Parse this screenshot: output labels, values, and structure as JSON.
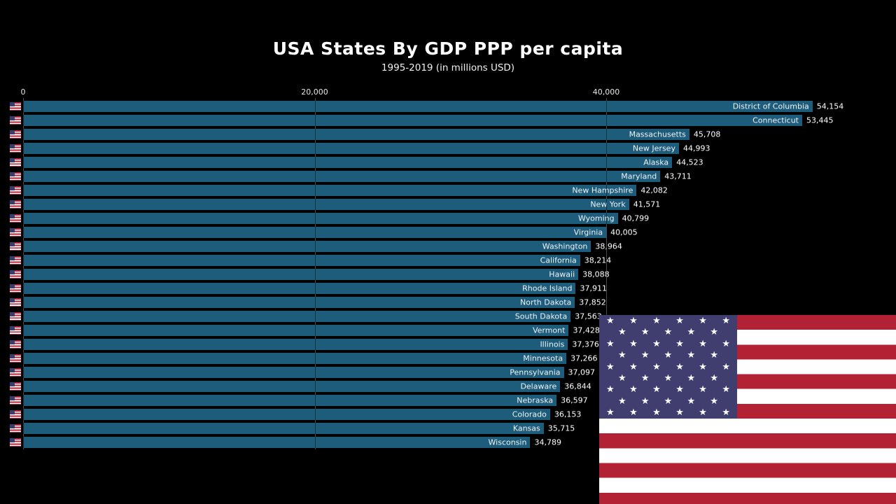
{
  "title": "USA States By GDP PPP per capita",
  "subtitle": "1995-2019 (in millions USD)",
  "colors": {
    "background": "#000000",
    "bar": "#1e5c7b",
    "text": "#ffffff",
    "gridline": "#8a8a8a",
    "flag_red": "#b22234",
    "flag_white": "#ffffff",
    "flag_blue": "#3f3e6e"
  },
  "axis": {
    "ticks": [
      0,
      20000,
      40000
    ],
    "tick_labels": [
      "0",
      "20,000",
      "40,000"
    ],
    "position": "top"
  },
  "chart_data": {
    "type": "bar",
    "orientation": "horizontal",
    "title": "USA States By GDP PPP per capita",
    "subtitle": "1995-2019 (in millions USD)",
    "xlabel": "",
    "ylabel": "",
    "xlim": [
      0,
      40000
    ],
    "grid": true,
    "legend": false,
    "categories": [
      "District of Columbia",
      "Connecticut",
      "Massachusetts",
      "New Jersey",
      "Alaska",
      "Maryland",
      "New Hampshire",
      "New York",
      "Wyoming",
      "Virginia",
      "Washington",
      "California",
      "Hawaii",
      "Rhode Island",
      "North Dakota",
      "South Dakota",
      "Vermont",
      "Illinois",
      "Minnesota",
      "Pennsylvania",
      "Delaware",
      "Nebraska",
      "Colorado",
      "Kansas",
      "Wisconsin"
    ],
    "values": [
      54154,
      53445,
      45708,
      44993,
      44523,
      43711,
      42082,
      41571,
      40799,
      40005,
      38964,
      38214,
      38088,
      37911,
      37852,
      37563,
      37428,
      37376,
      37266,
      37097,
      36844,
      36597,
      36153,
      35715,
      34789
    ]
  },
  "flag": {
    "star_glyph": "★",
    "star_rows": [
      6,
      5,
      6,
      5,
      6,
      5,
      6,
      5,
      6
    ]
  }
}
